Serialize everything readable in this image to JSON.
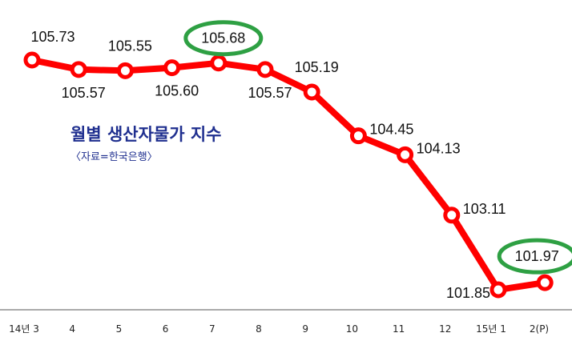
{
  "chart_data": {
    "type": "line",
    "title": "월별 생산자물가 지수",
    "subtitle": "〈자료=한국은행〉",
    "categories": [
      "14년 3",
      "4",
      "5",
      "6",
      "7",
      "8",
      "9",
      "10",
      "11",
      "12",
      "15년 1",
      "2(P)"
    ],
    "values": [
      105.73,
      105.57,
      105.55,
      105.6,
      105.68,
      105.57,
      105.19,
      104.45,
      104.13,
      103.11,
      101.85,
      101.97
    ],
    "data_labels": [
      "105.73",
      "105.57",
      "105.55",
      "105.60",
      "105.68",
      "105.57",
      "105.19",
      "104.45",
      "104.13",
      "103.11",
      "101.85",
      "101.97"
    ],
    "highlighted_labels": [
      "105.68",
      "101.97"
    ],
    "grid": false,
    "colors": {
      "line": "#ff0000",
      "marker_fill": "#ffffff",
      "highlight": "#2ea043",
      "title": "#1f2f8f",
      "axis": "#555555"
    }
  }
}
